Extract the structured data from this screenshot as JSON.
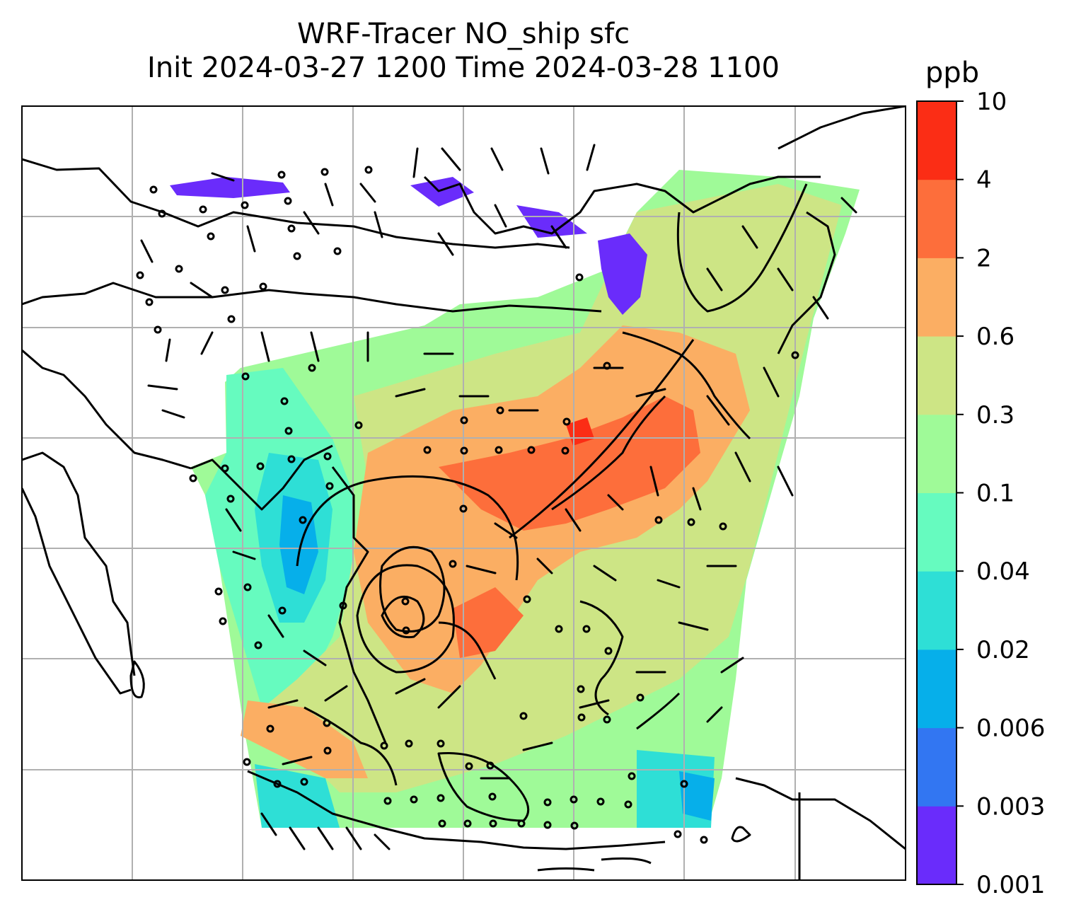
{
  "title": {
    "line1": "WRF-Tracer NO_ship sfc",
    "line2": "Init 2024-03-27 1200 Time 2024-03-28 1100"
  },
  "colorbar": {
    "unit": "ppb",
    "levels": [
      "0.001",
      "0.003",
      "0.006",
      "0.02",
      "0.04",
      "0.1",
      "0.3",
      "0.6",
      "2",
      "4",
      "10"
    ],
    "colors": [
      "#6a2cfb",
      "#3276f2",
      "#06afea",
      "#2edfd6",
      "#66fbbf",
      "#9ffa98",
      "#cde585",
      "#fbae63",
      "#fd6e3b",
      "#fb2d15"
    ]
  },
  "map": {
    "projection": "Mercator",
    "gridlines": true,
    "coastlines": true,
    "field": "NO_ship surface concentration",
    "overlay": [
      "wind barbs",
      "pressure contours"
    ]
  }
}
